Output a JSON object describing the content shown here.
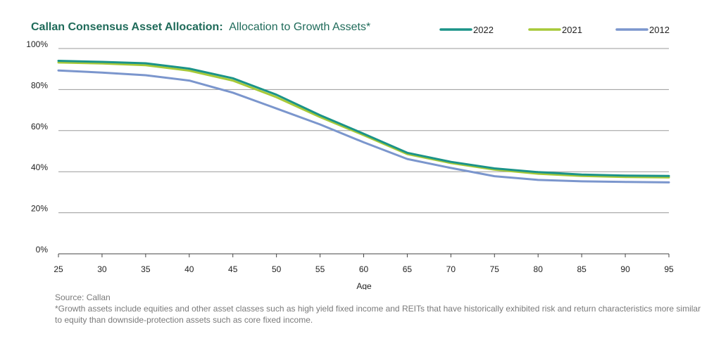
{
  "chart_data": {
    "type": "line",
    "title": "Callan Consensus Asset Allocation:",
    "subtitle": "Allocation to Growth Assets*",
    "xlabel": "Age",
    "ylabel": "",
    "x": [
      25,
      30,
      35,
      40,
      45,
      50,
      55,
      60,
      65,
      70,
      75,
      80,
      85,
      90,
      95
    ],
    "xticks": [
      "25",
      "30",
      "35",
      "40",
      "45",
      "50",
      "55",
      "60",
      "65",
      "70",
      "75",
      "80",
      "85",
      "90",
      "95"
    ],
    "yticks": [
      "0%",
      "20%",
      "40%",
      "60%",
      "80%",
      "100%"
    ],
    "ylim": [
      0,
      100
    ],
    "xlim": [
      25,
      95
    ],
    "grid": true,
    "legend_position": "top-right",
    "series": [
      {
        "name": "2022",
        "color": "#1b9388",
        "values": [
          94,
          93.5,
          92.8,
          90.2,
          85.5,
          77.5,
          67.5,
          58.5,
          49.2,
          44.8,
          41.6,
          39.8,
          38.6,
          38.1,
          37.9
        ]
      },
      {
        "name": "2021",
        "color": "#a7c939",
        "values": [
          93.2,
          92.7,
          91.9,
          89.2,
          84.4,
          76.3,
          66.6,
          57.8,
          48.6,
          44.2,
          41.0,
          39.0,
          37.9,
          37.4,
          37.2
        ]
      },
      {
        "name": "2012",
        "color": "#7b96cd",
        "values": [
          89.3,
          88.3,
          87.0,
          84.4,
          78.5,
          70.8,
          63.0,
          54.3,
          46.2,
          41.8,
          37.8,
          36.0,
          35.3,
          35.0,
          34.8
        ]
      }
    ]
  },
  "footer": {
    "source": "Source: Callan",
    "note": "*Growth assets include equities and other asset classes such as high yield fixed income and REITs that have historically exhibited risk and return characteristics more similar to equity than downside-protection assets such as core fixed income."
  }
}
